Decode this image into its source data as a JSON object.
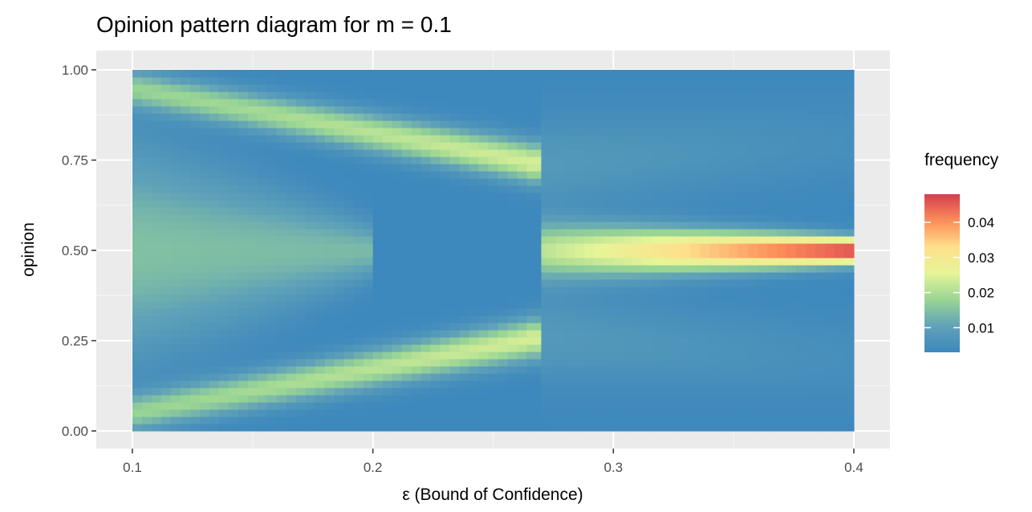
{
  "chart_data": {
    "type": "heatmap",
    "title": "Opinion pattern diagram for m = 0.1",
    "xlabel": "ε (Bound of Confidence)",
    "ylabel": "opinion",
    "xlim": [
      0.1,
      0.4
    ],
    "ylim": [
      0.0,
      1.0
    ],
    "x_ticks": [
      {
        "value": 0.1,
        "label": "0.1"
      },
      {
        "value": 0.2,
        "label": "0.2"
      },
      {
        "value": 0.3,
        "label": "0.3"
      },
      {
        "value": 0.4,
        "label": "0.4"
      }
    ],
    "y_ticks": [
      {
        "value": 0.0,
        "label": "0.00"
      },
      {
        "value": 0.25,
        "label": "0.25"
      },
      {
        "value": 0.5,
        "label": "0.50"
      },
      {
        "value": 0.75,
        "label": "0.75"
      },
      {
        "value": 1.0,
        "label": "1.00"
      }
    ],
    "grid": true,
    "transition_epsilon": 0.27,
    "legend": {
      "title": "frequency",
      "position": "right",
      "range": [
        0.003,
        0.048
      ],
      "ticks": [
        {
          "value": 0.01,
          "label": "0.01"
        },
        {
          "value": 0.02,
          "label": "0.02"
        },
        {
          "value": 0.03,
          "label": "0.03"
        },
        {
          "value": 0.04,
          "label": "0.04"
        }
      ]
    },
    "colormap": [
      "#3d88bd",
      "#60a2b8",
      "#99d594",
      "#e6f598",
      "#fee08b",
      "#fc8d59",
      "#d53e4f"
    ],
    "regimes": [
      {
        "epsilon_range": [
          0.1,
          0.27
        ],
        "clusters": [
          {
            "eps": [
              0.1,
              0.27
            ],
            "center": [
              0.95,
              0.74
            ],
            "width": [
              0.035,
              0.04
            ],
            "peak": [
              0.014,
              0.021
            ]
          },
          {
            "eps": [
              0.1,
              0.27
            ],
            "center": [
              0.05,
              0.26
            ],
            "width": [
              0.035,
              0.04
            ],
            "peak": [
              0.014,
              0.021
            ]
          },
          {
            "eps": [
              0.1,
              0.2
            ],
            "center": [
              0.5,
              0.5
            ],
            "width": [
              0.2,
              0.05
            ],
            "peak": [
              0.012,
              0.011
            ]
          }
        ]
      },
      {
        "epsilon_range": [
          0.27,
          0.4
        ],
        "clusters": [
          {
            "eps": [
              0.27,
              0.4
            ],
            "center": [
              0.5,
              0.5
            ],
            "width": [
              0.055,
              0.025
            ],
            "peak": [
              0.018,
              0.046
            ]
          },
          {
            "eps": [
              0.27,
              0.4
            ],
            "center": [
              0.74,
              0.8
            ],
            "width": [
              0.09,
              0.08
            ],
            "peak": [
              0.005,
              0.002
            ]
          },
          {
            "eps": [
              0.27,
              0.4
            ],
            "center": [
              0.26,
              0.2
            ],
            "width": [
              0.09,
              0.08
            ],
            "peak": [
              0.005,
              0.002
            ]
          }
        ]
      }
    ]
  }
}
